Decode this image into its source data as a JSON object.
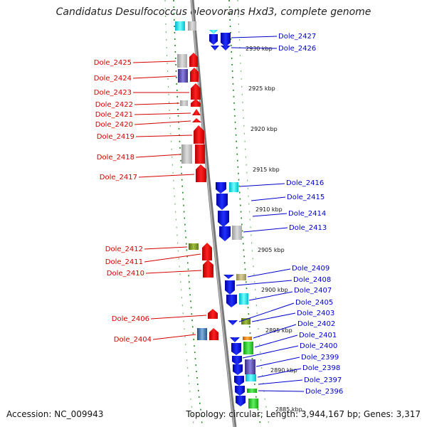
{
  "title": "Candidatus Desulfococcus oleovorans Hxd3, complete genome",
  "footer": {
    "accession": "Accession: NC_009943",
    "summary": "Topology: circular; Length: 3,944,167 bp; Genes: 3,317"
  },
  "scale_labels": [
    "2930 kbp",
    "2925 kbp",
    "2920 kbp",
    "2915 kbp",
    "2910 kbp",
    "2905 kbp",
    "2900 kbp",
    "2895 kbp",
    "2890 kbp",
    "2885 kbp"
  ],
  "left_genes": [
    "Dole_2425",
    "Dole_2424",
    "Dole_2423",
    "Dole_2422",
    "Dole_2421",
    "Dole_2420",
    "Dole_2419",
    "Dole_2418",
    "Dole_2417",
    "Dole_2412",
    "Dole_2411",
    "Dole_2410",
    "Dole_2406",
    "Dole_2404"
  ],
  "right_genes": [
    "Dole_2427",
    "Dole_2426",
    "Dole_2416",
    "Dole_2415",
    "Dole_2414",
    "Dole_2413",
    "Dole_2409",
    "Dole_2408",
    "Dole_2407",
    "Dole_2405",
    "Dole_2403",
    "Dole_2402",
    "Dole_2401",
    "Dole_2400",
    "Dole_2399",
    "Dole_2398",
    "Dole_2397",
    "Dole_2396"
  ],
  "colors": {
    "forward_gene": "#ff0000",
    "reverse_gene": "#0000ff",
    "left_label": "#d40000",
    "right_label": "#0000cc",
    "backbone": "#888888",
    "dotted_track": "#228822"
  }
}
